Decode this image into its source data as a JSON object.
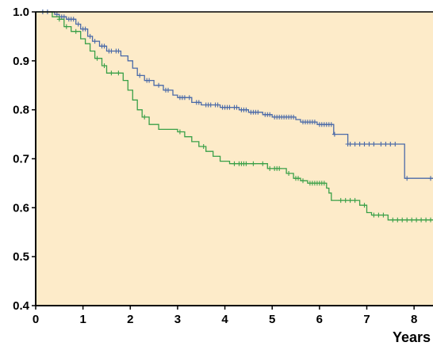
{
  "chart_data": {
    "type": "line",
    "title": "",
    "xlabel": "Years",
    "ylabel": "",
    "xlim": [
      0,
      8.4
    ],
    "ylim": [
      0.4,
      1.0
    ],
    "xticks": [
      "0",
      "1",
      "2",
      "3",
      "4",
      "5",
      "6",
      "7",
      "8"
    ],
    "yticks": [
      "0.4",
      "0.5",
      "0.6",
      "0.7",
      "0.8",
      "0.9",
      "1.0"
    ],
    "grid": false,
    "legend": "none",
    "background_color": "#fdebc9",
    "series": [
      {
        "color": "#4a6aa8",
        "steps": [
          [
            0,
            1.0
          ],
          [
            0.4,
            0.995
          ],
          [
            0.5,
            0.99
          ],
          [
            0.65,
            0.985
          ],
          [
            0.85,
            0.975
          ],
          [
            0.95,
            0.965
          ],
          [
            1.1,
            0.95
          ],
          [
            1.2,
            0.94
          ],
          [
            1.35,
            0.93
          ],
          [
            1.5,
            0.92
          ],
          [
            1.8,
            0.91
          ],
          [
            1.95,
            0.9
          ],
          [
            2.05,
            0.885
          ],
          [
            2.15,
            0.87
          ],
          [
            2.3,
            0.86
          ],
          [
            2.5,
            0.85
          ],
          [
            2.7,
            0.84
          ],
          [
            2.9,
            0.83
          ],
          [
            3.0,
            0.825
          ],
          [
            3.3,
            0.815
          ],
          [
            3.5,
            0.81
          ],
          [
            3.9,
            0.805
          ],
          [
            4.3,
            0.8
          ],
          [
            4.5,
            0.795
          ],
          [
            4.8,
            0.79
          ],
          [
            5.0,
            0.785
          ],
          [
            5.5,
            0.78
          ],
          [
            5.6,
            0.775
          ],
          [
            5.95,
            0.77
          ],
          [
            6.3,
            0.75
          ],
          [
            6.6,
            0.73
          ],
          [
            7.8,
            0.66
          ],
          [
            8.4,
            0.66
          ]
        ],
        "censor_x": [
          0.15,
          0.25,
          0.45,
          0.55,
          0.6,
          0.7,
          0.75,
          0.8,
          0.9,
          1.0,
          1.05,
          1.15,
          1.25,
          1.4,
          1.45,
          1.55,
          1.6,
          1.7,
          1.75,
          2.2,
          2.35,
          2.4,
          2.6,
          2.75,
          2.8,
          3.05,
          3.1,
          3.15,
          3.25,
          3.4,
          3.45,
          3.6,
          3.65,
          3.7,
          3.8,
          3.85,
          3.95,
          4.0,
          4.05,
          4.1,
          4.2,
          4.25,
          4.35,
          4.4,
          4.45,
          4.55,
          4.6,
          4.65,
          4.7,
          4.85,
          4.9,
          4.95,
          5.05,
          5.1,
          5.15,
          5.2,
          5.25,
          5.3,
          5.35,
          5.4,
          5.45,
          5.65,
          5.7,
          5.75,
          5.8,
          5.85,
          5.9,
          6.0,
          6.05,
          6.1,
          6.15,
          6.2,
          6.25,
          6.32,
          6.6,
          6.65,
          6.75,
          6.85,
          6.95,
          7.05,
          7.15,
          7.3,
          7.4,
          7.5,
          7.6,
          7.85,
          8.35
        ]
      },
      {
        "color": "#3aa048",
        "steps": [
          [
            0,
            1.0
          ],
          [
            0.35,
            0.99
          ],
          [
            0.5,
            0.985
          ],
          [
            0.6,
            0.97
          ],
          [
            0.75,
            0.96
          ],
          [
            0.95,
            0.945
          ],
          [
            1.05,
            0.935
          ],
          [
            1.15,
            0.92
          ],
          [
            1.25,
            0.905
          ],
          [
            1.4,
            0.89
          ],
          [
            1.5,
            0.875
          ],
          [
            1.85,
            0.86
          ],
          [
            1.95,
            0.84
          ],
          [
            2.05,
            0.82
          ],
          [
            2.15,
            0.8
          ],
          [
            2.25,
            0.785
          ],
          [
            2.4,
            0.77
          ],
          [
            2.6,
            0.76
          ],
          [
            3.0,
            0.755
          ],
          [
            3.15,
            0.745
          ],
          [
            3.3,
            0.735
          ],
          [
            3.45,
            0.725
          ],
          [
            3.6,
            0.715
          ],
          [
            3.75,
            0.705
          ],
          [
            3.9,
            0.695
          ],
          [
            4.1,
            0.69
          ],
          [
            4.9,
            0.68
          ],
          [
            5.3,
            0.67
          ],
          [
            5.45,
            0.66
          ],
          [
            5.6,
            0.655
          ],
          [
            5.75,
            0.65
          ],
          [
            6.15,
            0.64
          ],
          [
            6.2,
            0.63
          ],
          [
            6.25,
            0.615
          ],
          [
            6.85,
            0.605
          ],
          [
            7.0,
            0.59
          ],
          [
            7.1,
            0.585
          ],
          [
            7.45,
            0.575
          ],
          [
            8.4,
            0.575
          ]
        ],
        "censor_x": [
          0.5,
          0.65,
          0.85,
          1.3,
          1.45,
          1.6,
          1.75,
          2.3,
          3.05,
          3.55,
          4.2,
          4.3,
          4.35,
          4.4,
          4.45,
          4.6,
          4.8,
          4.95,
          5.05,
          5.1,
          5.15,
          5.35,
          5.5,
          5.55,
          5.65,
          5.8,
          5.85,
          5.9,
          5.95,
          6.0,
          6.05,
          6.1,
          6.45,
          6.55,
          6.65,
          6.75,
          6.95,
          7.15,
          7.25,
          7.35,
          7.55,
          7.65,
          7.75,
          7.85,
          7.95,
          8.05,
          8.15,
          8.25,
          8.35
        ]
      }
    ]
  }
}
